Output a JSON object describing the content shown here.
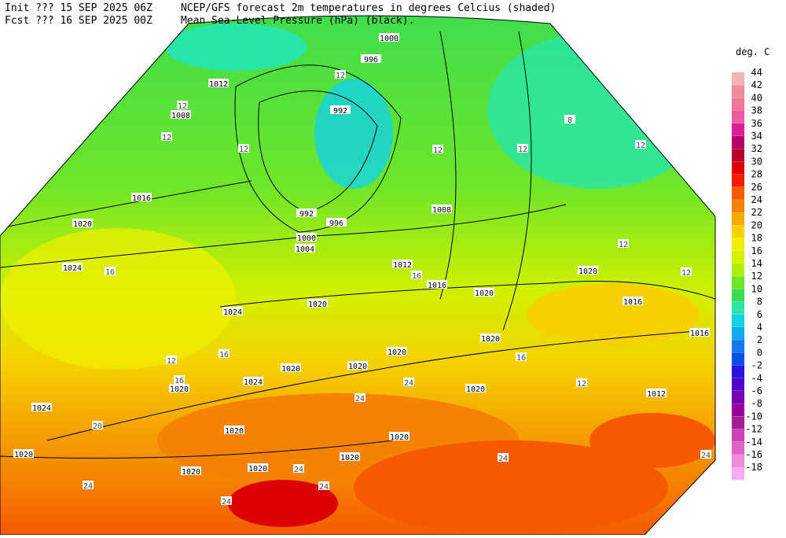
{
  "header": {
    "init": "Init  ??? 15 SEP 2025 06Z",
    "fcst": "Fcst ??? 16 SEP 2025 00Z",
    "title": "NCEP/GFS forecast 2m temperatures in degrees Celcius (shaded)",
    "subtitle": "Mean Sea-Level Pressure (hPa) (black)."
  },
  "legend": {
    "title": "deg. C",
    "values": [
      44,
      42,
      40,
      38,
      36,
      34,
      32,
      30,
      28,
      26,
      24,
      22,
      20,
      18,
      16,
      14,
      12,
      10,
      8,
      6,
      4,
      2,
      0,
      -2,
      -4,
      -6,
      -8,
      -10,
      -12,
      -14,
      -16,
      -18
    ],
    "colors": [
      "#f5b4b4",
      "#f08c96",
      "#f07896",
      "#f05aa0",
      "#dc1e96",
      "#b4006e",
      "#b40028",
      "#dc0000",
      "#f01e00",
      "#f55a00",
      "#f58200",
      "#f5aa00",
      "#f5d200",
      "#f0f000",
      "#d2f000",
      "#aaf000",
      "#6ee628",
      "#3cdc50",
      "#28e6aa",
      "#14d2e6",
      "#14aaf0",
      "#1478f0",
      "#0050e6",
      "#2814dc",
      "#5000c8",
      "#7800b4",
      "#9600a0",
      "#a01e96",
      "#c846b4",
      "#dc64c8",
      "#f08cdc",
      "#faaaf0"
    ]
  },
  "map": {
    "isobar_labels": [
      "1000",
      "996",
      "1012",
      "1008",
      "992",
      "992",
      "996",
      "1000",
      "1004",
      "1008",
      "1016",
      "1020",
      "1024",
      "1012",
      "1016",
      "1020",
      "1020",
      "1016",
      "1016",
      "1020",
      "1024",
      "1020",
      "1020",
      "1020",
      "1020",
      "1024",
      "1024",
      "1020",
      "1020",
      "1020",
      "1020",
      "1020",
      "1020",
      "1020",
      "1012",
      "1020"
    ],
    "temperature_labels": [
      "12",
      "12",
      "12",
      "12",
      "12",
      "12",
      "12",
      "8",
      "16",
      "12",
      "12",
      "16",
      "12",
      "16",
      "24",
      "24",
      "20",
      "24",
      "24",
      "24",
      "24",
      "24",
      "16",
      "12",
      "24",
      "16"
    ]
  }
}
